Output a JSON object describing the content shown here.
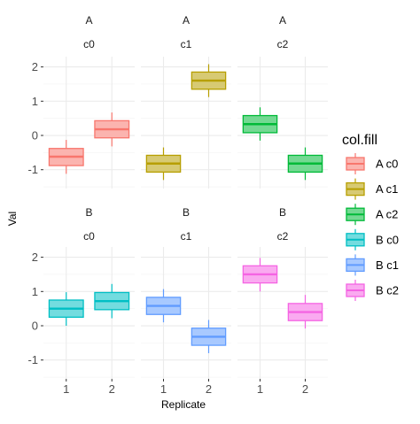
{
  "chart_data": {
    "type": "boxplot",
    "xlabel": "Replicate",
    "ylabel": "Val",
    "ylim": [
      -1.55,
      2.3
    ],
    "yticks": [
      -1,
      0,
      1,
      2
    ],
    "ytick_labels": [
      "-1",
      "0",
      "1",
      "2"
    ],
    "xcategories": [
      "1",
      "2"
    ],
    "legend": {
      "title": "col.fill",
      "placement": "right",
      "entries": [
        {
          "label": "A c0",
          "fill": "#F8766D"
        },
        {
          "label": "A c1",
          "fill": "#B79F00"
        },
        {
          "label": "A c2",
          "fill": "#00BA38"
        },
        {
          "label": "B c0",
          "fill": "#00BFC4"
        },
        {
          "label": "B c1",
          "fill": "#619CFF"
        },
        {
          "label": "B c2",
          "fill": "#F564E3"
        }
      ]
    },
    "panels": [
      {
        "row": 0,
        "col": 0,
        "strip_top": "A",
        "strip_bottom": "c0",
        "fill": "#F8766D",
        "boxes": [
          {
            "x": "1",
            "whisker_low": -1.12,
            "q1": -0.88,
            "median": -0.62,
            "q3": -0.38,
            "whisker_high": -0.13
          },
          {
            "x": "2",
            "whisker_low": -0.32,
            "q1": -0.07,
            "median": 0.18,
            "q3": 0.43,
            "whisker_high": 0.67
          }
        ]
      },
      {
        "row": 0,
        "col": 1,
        "strip_top": "A",
        "strip_bottom": "c1",
        "fill": "#B79F00",
        "boxes": [
          {
            "x": "1",
            "whisker_low": -1.3,
            "q1": -1.07,
            "median": -0.82,
            "q3": -0.58,
            "whisker_high": -0.35
          },
          {
            "x": "2",
            "whisker_low": 1.12,
            "q1": 1.35,
            "median": 1.6,
            "q3": 1.85,
            "whisker_high": 2.08
          }
        ]
      },
      {
        "row": 0,
        "col": 2,
        "strip_top": "A",
        "strip_bottom": "c2",
        "fill": "#00BA38",
        "boxes": [
          {
            "x": "1",
            "whisker_low": -0.15,
            "q1": 0.08,
            "median": 0.33,
            "q3": 0.58,
            "whisker_high": 0.82
          },
          {
            "x": "2",
            "whisker_low": -1.3,
            "q1": -1.07,
            "median": -0.82,
            "q3": -0.58,
            "whisker_high": -0.35
          }
        ]
      },
      {
        "row": 1,
        "col": 0,
        "strip_top": "B",
        "strip_bottom": "c0",
        "fill": "#00BFC4",
        "boxes": [
          {
            "x": "1",
            "whisker_low": 0.0,
            "q1": 0.25,
            "median": 0.5,
            "q3": 0.75,
            "whisker_high": 0.98
          },
          {
            "x": "2",
            "whisker_low": 0.22,
            "q1": 0.47,
            "median": 0.72,
            "q3": 0.97,
            "whisker_high": 1.22
          }
        ]
      },
      {
        "row": 1,
        "col": 1,
        "strip_top": "B",
        "strip_bottom": "c1",
        "fill": "#619CFF",
        "boxes": [
          {
            "x": "1",
            "whisker_low": 0.1,
            "q1": 0.33,
            "median": 0.58,
            "q3": 0.83,
            "whisker_high": 1.07
          },
          {
            "x": "2",
            "whisker_low": -0.8,
            "q1": -0.57,
            "median": -0.32,
            "q3": -0.07,
            "whisker_high": 0.17
          }
        ]
      },
      {
        "row": 1,
        "col": 2,
        "strip_top": "B",
        "strip_bottom": "c2",
        "fill": "#F564E3",
        "boxes": [
          {
            "x": "1",
            "whisker_low": 1.0,
            "q1": 1.25,
            "median": 1.5,
            "q3": 1.75,
            "whisker_high": 1.98
          },
          {
            "x": "2",
            "whisker_low": -0.08,
            "q1": 0.15,
            "median": 0.4,
            "q3": 0.65,
            "whisker_high": 0.9
          }
        ]
      }
    ]
  }
}
